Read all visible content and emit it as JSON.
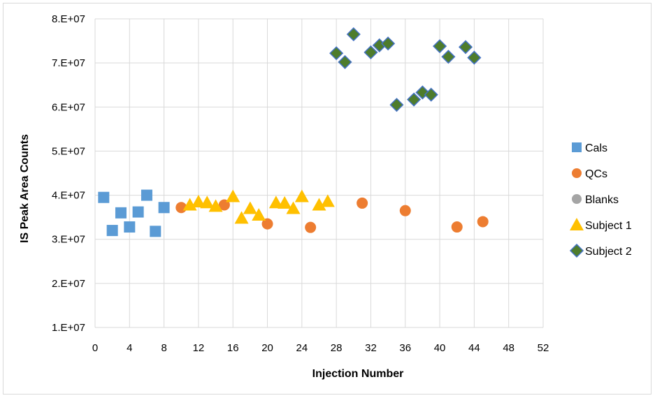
{
  "chart_data": {
    "type": "scatter",
    "title": "",
    "xlabel": "Injection Number",
    "ylabel": "IS Peak Area Counts",
    "xlim": [
      0,
      52
    ],
    "ylim": [
      10000000,
      80000000
    ],
    "x_ticks": [
      "0",
      "4",
      "8",
      "12",
      "16",
      "20",
      "24",
      "28",
      "32",
      "36",
      "40",
      "44",
      "48",
      "52"
    ],
    "y_ticks": [
      "1.E+07",
      "2.E+07",
      "3.E+07",
      "4.E+07",
      "5.E+07",
      "6.E+07",
      "7.E+07",
      "8.E+07"
    ],
    "grid": true,
    "legend_position": "right",
    "series": [
      {
        "name": "Cals",
        "marker": "square",
        "color": "#5b9bd5",
        "points": [
          [
            1,
            39500000
          ],
          [
            2,
            32000000
          ],
          [
            3,
            36000000
          ],
          [
            4,
            32800000
          ],
          [
            5,
            36200000
          ],
          [
            6,
            40000000
          ],
          [
            7,
            31800000
          ],
          [
            8,
            37200000
          ]
        ]
      },
      {
        "name": "QCs",
        "marker": "circle",
        "color": "#ed7d31",
        "points": [
          [
            10,
            37200000
          ],
          [
            15,
            37800000
          ],
          [
            20,
            33500000
          ],
          [
            25,
            32700000
          ],
          [
            31,
            38200000
          ],
          [
            36,
            36500000
          ],
          [
            42,
            32800000
          ],
          [
            45,
            34000000
          ]
        ]
      },
      {
        "name": "Blanks",
        "marker": "circle",
        "color": "#a5a5a5",
        "points": []
      },
      {
        "name": "Subject 1",
        "marker": "triangle",
        "color": "#ffc000",
        "points": [
          [
            11,
            37800000
          ],
          [
            12,
            38500000
          ],
          [
            13,
            38300000
          ],
          [
            14,
            37500000
          ],
          [
            16,
            39700000
          ],
          [
            17,
            34800000
          ],
          [
            18,
            37000000
          ],
          [
            19,
            35500000
          ],
          [
            21,
            38300000
          ],
          [
            22,
            38200000
          ],
          [
            23,
            37000000
          ],
          [
            24,
            39700000
          ],
          [
            26,
            37800000
          ],
          [
            27,
            38600000
          ]
        ]
      },
      {
        "name": "Subject 2",
        "marker": "diamond",
        "color": "#4e7c2c",
        "stroke": "#4472c4",
        "points": [
          [
            28,
            72200000
          ],
          [
            29,
            70200000
          ],
          [
            30,
            76500000
          ],
          [
            32,
            72400000
          ],
          [
            33,
            74000000
          ],
          [
            34,
            74400000
          ],
          [
            35,
            60500000
          ],
          [
            37,
            61700000
          ],
          [
            38,
            63300000
          ],
          [
            39,
            62800000
          ],
          [
            40,
            73800000
          ],
          [
            41,
            71400000
          ],
          [
            43,
            73600000
          ],
          [
            44,
            71200000
          ]
        ]
      }
    ]
  }
}
